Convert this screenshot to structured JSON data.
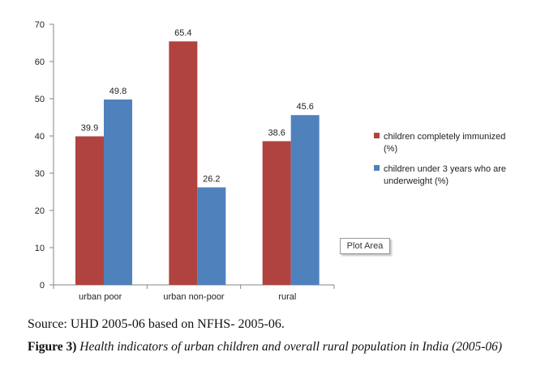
{
  "chart_data": {
    "type": "bar",
    "categories": [
      "urban poor",
      "urban non-poor",
      "rural"
    ],
    "series": [
      {
        "name": "children completely immunized (%)",
        "legend_lines": [
          "children completely immunized",
          "(%)"
        ],
        "color": "#b0433f",
        "values": [
          39.9,
          65.4,
          38.6
        ]
      },
      {
        "name": "children under 3 years who are underweight (%)",
        "legend_lines": [
          "children under 3 years who are",
          "underweight (%)"
        ],
        "color": "#4f81bd",
        "values": [
          49.8,
          26.2,
          45.6
        ]
      }
    ],
    "ylim": [
      0,
      70
    ],
    "yticks": [
      0,
      10,
      20,
      30,
      40,
      50,
      60,
      70
    ],
    "grid": false,
    "legend_position": "right"
  },
  "tooltip": "Plot Area",
  "source_text": "Source: UHD 2005-06 based on NFHS- 2005-06.",
  "figure_label": "Figure 3)",
  "figure_caption": "Health indicators of urban children and overall rural population in India (2005-06)"
}
